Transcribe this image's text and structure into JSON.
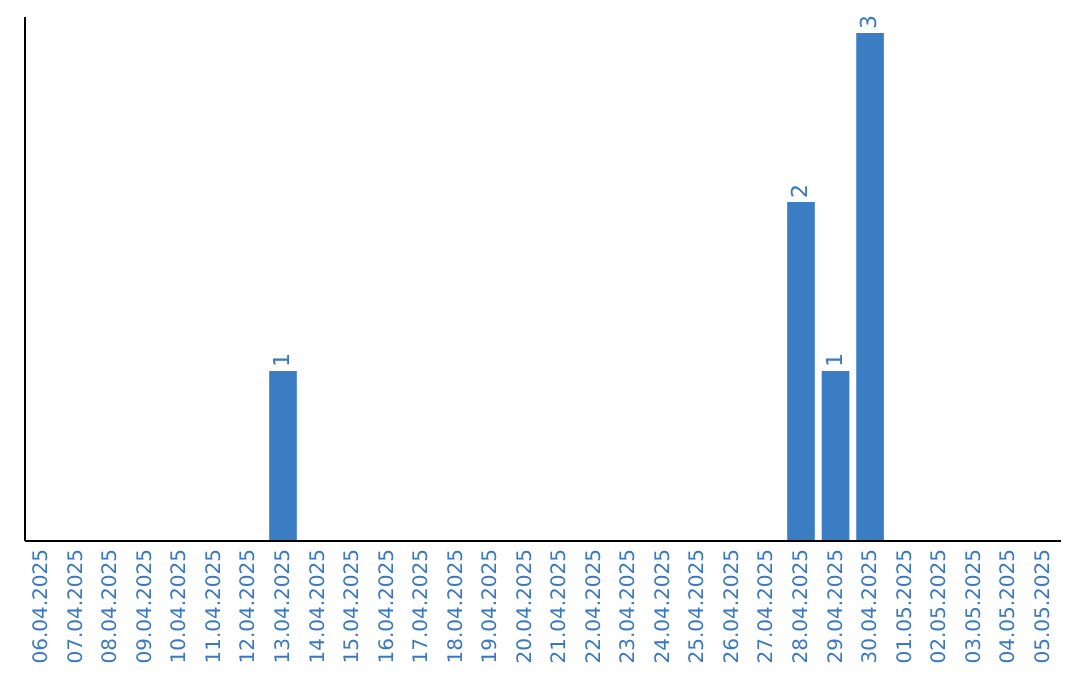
{
  "chart_data": {
    "type": "bar",
    "categories": [
      "06.04.2025",
      "07.04.2025",
      "08.04.2025",
      "09.04.2025",
      "10.04.2025",
      "11.04.2025",
      "12.04.2025",
      "13.04.2025",
      "14.04.2025",
      "15.04.2025",
      "16.04.2025",
      "17.04.2025",
      "18.04.2025",
      "19.04.2025",
      "20.04.2025",
      "21.04.2025",
      "22.04.2025",
      "23.04.2025",
      "24.04.2025",
      "25.04.2025",
      "26.04.2025",
      "27.04.2025",
      "28.04.2025",
      "29.04.2025",
      "30.04.2025",
      "01.05.2025",
      "02.05.2025",
      "03.05.2025",
      "04.05.2025",
      "05.05.2025"
    ],
    "values": [
      0,
      0,
      0,
      0,
      0,
      0,
      0,
      1,
      0,
      0,
      0,
      0,
      0,
      0,
      0,
      0,
      0,
      0,
      0,
      0,
      0,
      0,
      2,
      1,
      3,
      0,
      0,
      0,
      0,
      0
    ],
    "value_labels": [
      null,
      null,
      null,
      null,
      null,
      null,
      null,
      "1",
      null,
      null,
      null,
      null,
      null,
      null,
      null,
      null,
      null,
      null,
      null,
      null,
      null,
      null,
      "2",
      "1",
      "3",
      null,
      null,
      null,
      null,
      null
    ],
    "color": "#3b7dc3",
    "ylim": [
      0,
      3.1
    ],
    "tick_labels": "x",
    "grid": false
  }
}
